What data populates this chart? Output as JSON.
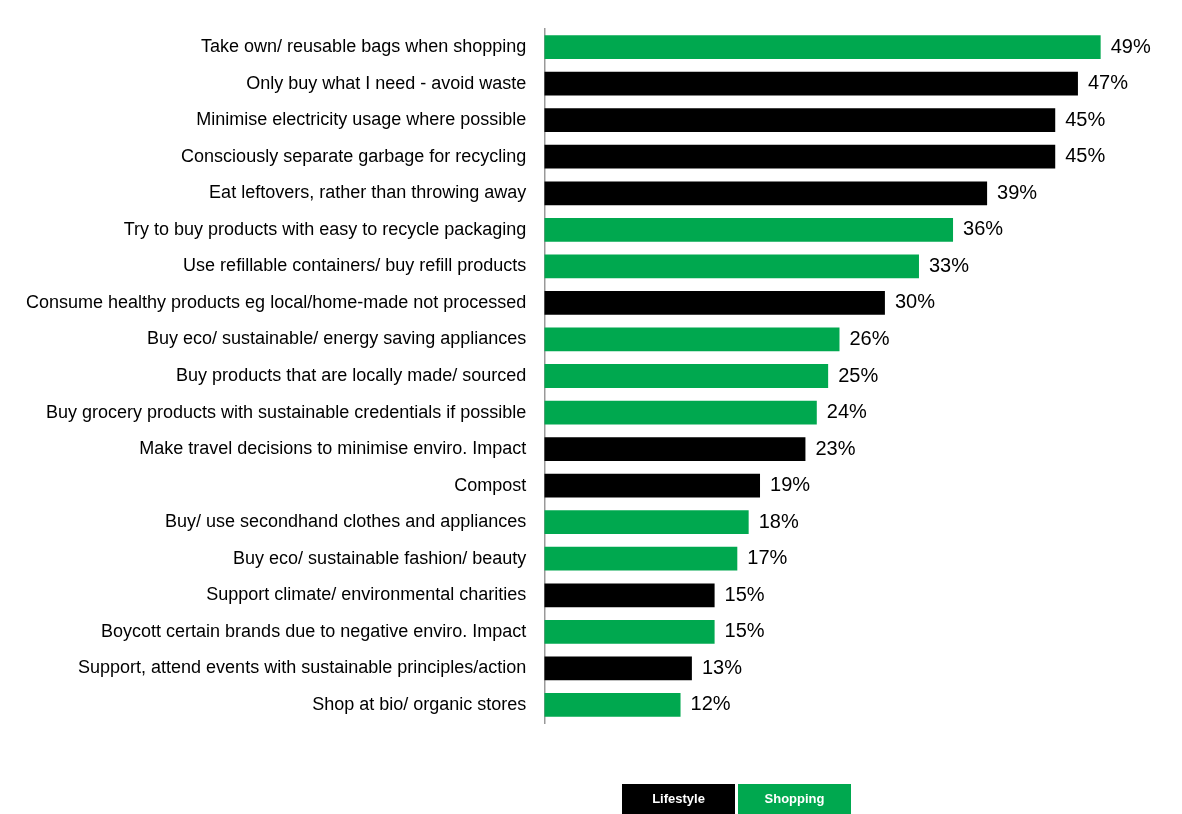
{
  "chart_data": {
    "type": "bar",
    "orientation": "horizontal",
    "stacked": true,
    "legend": "bottom",
    "categories": [
      "Take own/ reusable bags when shopping",
      "Only buy what I need - avoid waste",
      "Minimise electricity usage where possible",
      "Consciously separate garbage for recycling",
      "Eat leftovers, rather than throwing away",
      "Try to buy products with easy to recycle packaging",
      "Use refillable containers/ buy refill products",
      "Consume healthy products eg local/home-made not processed",
      "Buy eco/ sustainable/ energy saving appliances",
      "Buy products that are locally made/ sourced",
      "Buy grocery products with sustainable credentials if possible",
      "Make travel decisions to minimise enviro. Impact",
      "Compost",
      "Buy/ use secondhand clothes and appliances",
      "Buy eco/ sustainable fashion/ beauty",
      "Support climate/ environmental charities",
      "Boycott certain brands due to negative enviro. Impact",
      "Support, attend events with sustainable principles/action",
      "Shop at bio/ organic stores"
    ],
    "series": [
      {
        "name": "Lifestyle",
        "color": "#000000",
        "values": [
          null,
          47,
          45,
          45,
          39,
          null,
          null,
          30,
          null,
          null,
          null,
          23,
          19,
          null,
          null,
          15,
          null,
          13,
          null
        ],
        "value_labels": [
          null,
          "47%",
          "45%",
          "45%",
          "39%",
          null,
          null,
          "30%",
          null,
          null,
          null,
          "23%",
          "19%",
          null,
          null,
          "15%",
          null,
          "13%",
          null
        ]
      },
      {
        "name": "Shopping",
        "color": "#00a84f",
        "values": [
          49,
          null,
          null,
          null,
          null,
          36,
          33,
          null,
          26,
          25,
          24,
          null,
          null,
          18,
          17,
          null,
          15,
          null,
          12
        ],
        "value_labels": [
          "49%",
          null,
          null,
          null,
          null,
          "36%",
          "33%",
          null,
          "26%",
          "25%",
          "24%",
          null,
          null,
          "18%",
          "17%",
          null,
          "15%",
          null,
          "12%"
        ]
      }
    ]
  }
}
